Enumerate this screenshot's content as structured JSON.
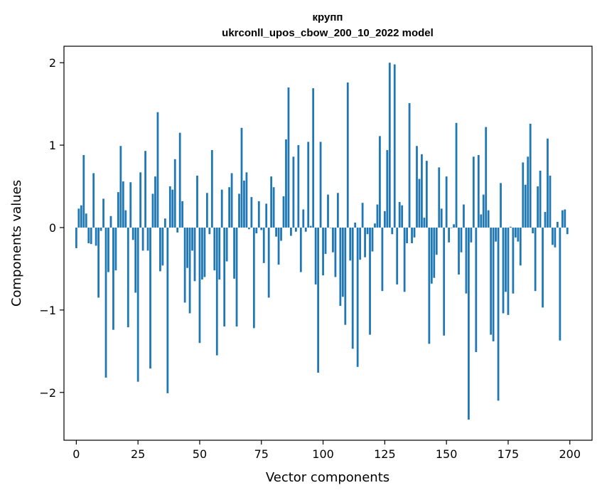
{
  "chart_data": {
    "type": "bar",
    "title": "крупп",
    "subtitle": "ukrconll_upos_cbow_200_10_2022 model",
    "xlabel": "Vector components",
    "ylabel": "Components values",
    "xlim": [
      -5,
      209
    ],
    "ylim": [
      -2.58,
      2.2
    ],
    "xticks": [
      0,
      25,
      50,
      75,
      100,
      125,
      150,
      175,
      200
    ],
    "xtick_labels": [
      "0",
      "25",
      "50",
      "75",
      "100",
      "125",
      "150",
      "175",
      "200"
    ],
    "yticks": [
      -2,
      -1,
      0,
      1,
      2
    ],
    "ytick_labels": [
      "−2",
      "−1",
      "0",
      "1",
      "2"
    ],
    "grid": false,
    "color": "#1f77b4",
    "values": [
      -0.25,
      0.23,
      0.27,
      0.88,
      0.17,
      -0.19,
      -0.2,
      0.66,
      -0.22,
      -0.85,
      -0.04,
      0.35,
      -1.82,
      -0.54,
      0.14,
      -1.24,
      -0.52,
      0.43,
      0.99,
      0.56,
      0.21,
      -1.21,
      0.55,
      -0.15,
      -0.79,
      -1.87,
      0.67,
      -0.28,
      0.93,
      -0.28,
      -1.71,
      0.41,
      0.62,
      1.4,
      -0.53,
      -0.46,
      0.11,
      -2.01,
      0.5,
      0.46,
      0.83,
      -0.06,
      1.15,
      0.32,
      -0.91,
      -0.49,
      -1.04,
      -0.28,
      -0.65,
      0.63,
      -1.4,
      -0.63,
      -0.6,
      0.42,
      -0.08,
      0.94,
      -0.52,
      -1.55,
      -0.63,
      0.46,
      -1.2,
      -0.41,
      0.49,
      0.66,
      -0.62,
      -1.2,
      0.41,
      1.21,
      0.57,
      0.67,
      -0.02,
      0.37,
      -1.22,
      -0.07,
      0.32,
      -0.03,
      -0.43,
      0.29,
      -0.85,
      0.62,
      0.49,
      -0.11,
      -0.45,
      -0.16,
      0.38,
      1.07,
      1.7,
      -0.1,
      0.86,
      -0.05,
      1.0,
      -0.54,
      0.22,
      -0.05,
      1.04,
      0.02,
      1.69,
      -0.69,
      -1.76,
      1.04,
      -0.58,
      -0.32,
      0.4,
      0.0,
      -0.3,
      -0.6,
      0.42,
      -0.95,
      -0.84,
      -1.18,
      1.76,
      -0.4,
      -1.47,
      0.06,
      -1.69,
      -0.39,
      0.3,
      -0.36,
      -0.08,
      -1.3,
      -0.29,
      0.05,
      0.28,
      1.11,
      -0.77,
      0.2,
      0.94,
      2.0,
      -0.08,
      1.98,
      -0.69,
      0.31,
      0.27,
      -0.78,
      -0.19,
      1.51,
      -0.19,
      -0.12,
      0.99,
      0.59,
      0.89,
      0.12,
      0.81,
      -1.41,
      -0.68,
      -0.61,
      -0.33,
      0.73,
      0.23,
      -1.31,
      0.62,
      -0.18,
      0.0,
      0.04,
      1.27,
      -0.57,
      -0.3,
      0.28,
      -0.8,
      -2.33,
      -0.18,
      0.86,
      -1.51,
      0.88,
      0.16,
      0.4,
      1.22,
      0.21,
      -1.3,
      -1.38,
      -0.17,
      -2.1,
      0.54,
      -1.04,
      -0.78,
      -1.06,
      0.01,
      -0.8,
      -0.12,
      -0.17,
      -0.46,
      0.79,
      0.52,
      0.86,
      1.26,
      -0.07,
      -0.77,
      0.5,
      0.69,
      -0.97,
      0.19,
      1.08,
      0.63,
      -0.21,
      -0.24,
      0.07,
      -1.37,
      0.21,
      0.22,
      -0.08
    ]
  }
}
